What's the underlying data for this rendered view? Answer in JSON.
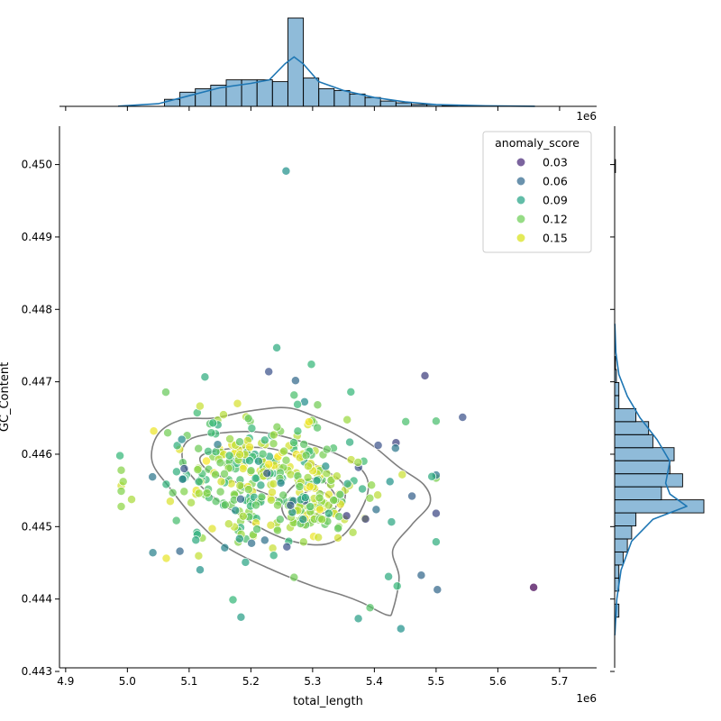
{
  "chart_data": {
    "type": "scatter",
    "xlabel": "total_length",
    "ylabel": "GC_Content",
    "x_offset_label": "1e6",
    "xlim": [
      4.89,
      5.76
    ],
    "ylim": [
      0.44305,
      0.45053
    ],
    "x_ticks": [
      "4.9",
      "5.0",
      "5.1",
      "5.2",
      "5.3",
      "5.4",
      "5.5",
      "5.6",
      "5.7"
    ],
    "y_ticks": [
      "0.443",
      "0.444",
      "0.445",
      "0.446",
      "0.447",
      "0.448",
      "0.449",
      "0.450"
    ],
    "legend": {
      "title": "anomaly_score",
      "placement": "top-right",
      "entries": [
        {
          "label": "0.03",
          "color": "#482878"
        },
        {
          "label": "0.06",
          "color": "#31688e"
        },
        {
          "label": "0.09",
          "color": "#26a386"
        },
        {
          "label": "0.12",
          "color": "#6ece58"
        },
        {
          "label": "0.15",
          "color": "#d8e219"
        }
      ]
    },
    "point_fixed": [
      {
        "x": 5.257,
        "y": 0.44991,
        "s": 0.07
      },
      {
        "x": 5.543,
        "y": 0.44651,
        "s": 0.04
      },
      {
        "x": 5.658,
        "y": 0.44416,
        "s": 0.01
      },
      {
        "x": 5.502,
        "y": 0.44413,
        "s": 0.05
      },
      {
        "x": 5.476,
        "y": 0.44433,
        "s": 0.05
      },
      {
        "x": 5.085,
        "y": 0.44466,
        "s": 0.05
      },
      {
        "x": 5.443,
        "y": 0.44359,
        "s": 0.07
      },
      {
        "x": 5.184,
        "y": 0.44375,
        "s": 0.08
      },
      {
        "x": 5.242,
        "y": 0.44747,
        "s": 0.09
      },
      {
        "x": 5.298,
        "y": 0.44724,
        "s": 0.1
      },
      {
        "x": 4.988,
        "y": 0.44598,
        "s": 0.1
      },
      {
        "x": 5.362,
        "y": 0.44686,
        "s": 0.1
      },
      {
        "x": 5.229,
        "y": 0.44714,
        "s": 0.04
      },
      {
        "x": 5.171,
        "y": 0.44399,
        "s": 0.1
      },
      {
        "x": 5.393,
        "y": 0.44388,
        "s": 0.11
      },
      {
        "x": 5.374,
        "y": 0.44373,
        "s": 0.08
      },
      {
        "x": 5.423,
        "y": 0.44431,
        "s": 0.09
      },
      {
        "x": 5.308,
        "y": 0.44668,
        "s": 0.12
      },
      {
        "x": 5.437,
        "y": 0.44418,
        "s": 0.1
      },
      {
        "x": 5.27,
        "y": 0.4443,
        "s": 0.12
      }
    ],
    "clusters": [
      {
        "cx": 5.205,
        "cy": 0.44576,
        "sx": 0.075,
        "sy": 0.00042,
        "n": 230,
        "smin": 0.09,
        "smax": 0.16
      },
      {
        "cx": 5.3,
        "cy": 0.44532,
        "sx": 0.038,
        "sy": 0.0003,
        "n": 90,
        "smin": 0.11,
        "smax": 0.16
      },
      {
        "cx": 5.26,
        "cy": 0.4456,
        "sx": 0.12,
        "sy": 0.00058,
        "n": 100,
        "smin": 0.03,
        "smax": 0.15
      }
    ],
    "contours": [
      [
        [
          5.05,
          0.44628
        ],
        [
          5.09,
          0.44648
        ],
        [
          5.14,
          0.4465
        ],
        [
          5.2,
          0.4466
        ],
        [
          5.26,
          0.44664
        ],
        [
          5.31,
          0.4465
        ],
        [
          5.36,
          0.44632
        ],
        [
          5.4,
          0.4461
        ],
        [
          5.44,
          0.44582
        ],
        [
          5.48,
          0.44558
        ],
        [
          5.49,
          0.44532
        ],
        [
          5.46,
          0.44502
        ],
        [
          5.43,
          0.44468
        ],
        [
          5.44,
          0.4443
        ],
        [
          5.43,
          0.44385
        ],
        [
          5.42,
          0.44378
        ],
        [
          5.38,
          0.44395
        ],
        [
          5.35,
          0.44405
        ],
        [
          5.3,
          0.44418
        ],
        [
          5.23,
          0.44442
        ],
        [
          5.16,
          0.44472
        ],
        [
          5.11,
          0.4451
        ],
        [
          5.07,
          0.44552
        ],
        [
          5.04,
          0.4459
        ]
      ],
      [
        [
          5.1,
          0.4462
        ],
        [
          5.16,
          0.4463
        ],
        [
          5.22,
          0.4463
        ],
        [
          5.28,
          0.44618
        ],
        [
          5.34,
          0.446
        ],
        [
          5.38,
          0.44578
        ],
        [
          5.39,
          0.4455
        ],
        [
          5.37,
          0.4451
        ],
        [
          5.34,
          0.44482
        ],
        [
          5.3,
          0.44475
        ],
        [
          5.24,
          0.44488
        ],
        [
          5.17,
          0.44522
        ],
        [
          5.12,
          0.44555
        ],
        [
          5.09,
          0.4459
        ]
      ],
      [
        [
          5.12,
          0.44598
        ],
        [
          5.17,
          0.44608
        ],
        [
          5.23,
          0.44608
        ],
        [
          5.28,
          0.44595
        ],
        [
          5.32,
          0.44578
        ],
        [
          5.35,
          0.44558
        ],
        [
          5.35,
          0.44532
        ],
        [
          5.33,
          0.44515
        ],
        [
          5.29,
          0.44518
        ],
        [
          5.24,
          0.4454
        ],
        [
          5.18,
          0.4456
        ],
        [
          5.13,
          0.44578
        ]
      ],
      [
        [
          5.28,
          0.44562
        ],
        [
          5.31,
          0.44566
        ],
        [
          5.33,
          0.44552
        ],
        [
          5.34,
          0.44532
        ],
        [
          5.32,
          0.44512
        ],
        [
          5.29,
          0.44505
        ],
        [
          5.26,
          0.4451
        ],
        [
          5.25,
          0.44528
        ],
        [
          5.26,
          0.44548
        ]
      ],
      [
        [
          5.29,
          0.44548
        ],
        [
          5.31,
          0.4455
        ],
        [
          5.33,
          0.44538
        ],
        [
          5.325,
          0.44522
        ],
        [
          5.3,
          0.44517
        ],
        [
          5.28,
          0.44524
        ],
        [
          5.28,
          0.44538
        ]
      ]
    ],
    "x_hist": {
      "bins": [
        [
          5.06,
          5.085
        ],
        [
          5.085,
          5.11
        ],
        [
          5.11,
          5.135
        ],
        [
          5.135,
          5.16
        ],
        [
          5.16,
          5.185
        ],
        [
          5.185,
          5.21
        ],
        [
          5.21,
          5.235
        ],
        [
          5.235,
          5.26
        ],
        [
          5.26,
          5.285
        ],
        [
          5.285,
          5.31
        ],
        [
          5.31,
          5.335
        ],
        [
          5.335,
          5.36
        ],
        [
          5.36,
          5.385
        ],
        [
          5.385,
          5.41
        ],
        [
          5.41,
          5.435
        ],
        [
          5.435,
          5.46
        ],
        [
          5.46,
          5.485
        ],
        [
          5.485,
          5.51
        ],
        [
          5.51,
          5.535
        ]
      ],
      "counts": [
        4,
        8,
        10,
        12,
        15,
        15,
        15,
        14,
        50,
        16,
        10,
        9,
        7,
        5,
        3,
        2,
        1,
        1,
        0.5
      ]
    },
    "x_kde": [
      [
        4.985,
        0.1
      ],
      [
        5.05,
        1.5
      ],
      [
        5.1,
        6
      ],
      [
        5.15,
        10.5
      ],
      [
        5.2,
        13
      ],
      [
        5.23,
        15
      ],
      [
        5.255,
        24
      ],
      [
        5.27,
        28
      ],
      [
        5.285,
        24
      ],
      [
        5.31,
        14
      ],
      [
        5.35,
        9
      ],
      [
        5.4,
        5
      ],
      [
        5.45,
        2.5
      ],
      [
        5.5,
        1
      ],
      [
        5.58,
        0.3
      ],
      [
        5.66,
        0.05
      ]
    ],
    "y_hist": {
      "bins": [
        [
          0.44375,
          0.44393
        ],
        [
          0.44393,
          0.44411
        ],
        [
          0.44411,
          0.44429
        ],
        [
          0.44429,
          0.44447
        ],
        [
          0.44447,
          0.44465
        ],
        [
          0.44465,
          0.44483
        ],
        [
          0.44483,
          0.44501
        ],
        [
          0.44501,
          0.44519
        ],
        [
          0.44519,
          0.44537
        ],
        [
          0.44537,
          0.44555
        ],
        [
          0.44555,
          0.44573
        ],
        [
          0.44573,
          0.44591
        ],
        [
          0.44591,
          0.44609
        ],
        [
          0.44609,
          0.44627
        ],
        [
          0.44627,
          0.44645
        ],
        [
          0.44645,
          0.44663
        ],
        [
          0.44663,
          0.44681
        ],
        [
          0.44681,
          0.44699
        ],
        [
          0.44699,
          0.44717
        ],
        [
          0.44717,
          0.44735
        ],
        [
          0.44989,
          0.45007
        ]
      ],
      "counts": [
        1,
        0,
        1,
        1,
        2,
        3,
        4,
        5,
        21,
        11,
        16,
        13,
        14,
        9,
        8,
        5,
        1,
        1,
        0.4,
        0.2,
        0.2
      ]
    },
    "y_kde": [
      [
        0.4435,
        0.05
      ],
      [
        0.444,
        0.5
      ],
      [
        0.4444,
        1.5
      ],
      [
        0.4448,
        4
      ],
      [
        0.4451,
        9
      ],
      [
        0.44528,
        17
      ],
      [
        0.44545,
        13
      ],
      [
        0.4456,
        12
      ],
      [
        0.4459,
        13
      ],
      [
        0.4462,
        10
      ],
      [
        0.4465,
        6
      ],
      [
        0.4468,
        3
      ],
      [
        0.4471,
        1
      ],
      [
        0.4474,
        0.3
      ],
      [
        0.4478,
        0.05
      ]
    ]
  }
}
